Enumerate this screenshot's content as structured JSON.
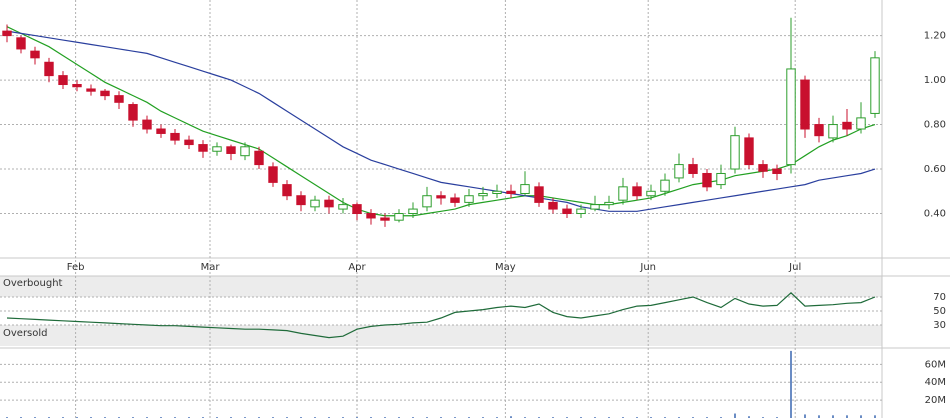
{
  "chart_data": [
    {
      "type": "candlestick",
      "x": [
        0,
        1,
        2,
        3,
        4,
        5,
        6,
        7,
        8,
        9,
        10,
        11,
        12,
        13,
        14,
        15,
        16,
        17,
        18,
        19,
        20,
        21,
        22,
        23,
        24,
        25,
        26,
        27,
        28,
        29,
        30,
        31,
        32,
        33,
        34,
        35,
        36,
        37,
        38,
        39,
        40,
        41,
        42,
        43,
        44,
        45,
        46,
        47,
        48,
        49,
        50,
        51,
        52,
        53,
        54,
        55,
        56,
        57,
        58,
        59,
        60,
        61,
        62
      ],
      "open": [
        1.22,
        1.19,
        1.13,
        1.08,
        1.02,
        0.98,
        0.96,
        0.95,
        0.93,
        0.89,
        0.82,
        0.78,
        0.76,
        0.73,
        0.71,
        0.68,
        0.7,
        0.66,
        0.68,
        0.61,
        0.53,
        0.48,
        0.43,
        0.46,
        0.42,
        0.44,
        0.4,
        0.38,
        0.37,
        0.4,
        0.43,
        0.48,
        0.47,
        0.45,
        0.48,
        0.49,
        0.5,
        0.49,
        0.52,
        0.45,
        0.42,
        0.4,
        0.42,
        0.44,
        0.46,
        0.52,
        0.48,
        0.5,
        0.56,
        0.62,
        0.58,
        0.53,
        0.6,
        0.74,
        0.62,
        0.6,
        0.62,
        1.0,
        0.8,
        0.74,
        0.81,
        0.78,
        0.85
      ],
      "high": [
        1.25,
        1.2,
        1.15,
        1.1,
        1.04,
        1.0,
        0.98,
        0.96,
        0.95,
        0.9,
        0.84,
        0.8,
        0.78,
        0.75,
        0.73,
        0.72,
        0.71,
        0.72,
        0.7,
        0.63,
        0.55,
        0.5,
        0.48,
        0.48,
        0.47,
        0.45,
        0.42,
        0.4,
        0.42,
        0.45,
        0.52,
        0.5,
        0.49,
        0.51,
        0.52,
        0.53,
        0.53,
        0.59,
        0.54,
        0.47,
        0.44,
        0.44,
        0.48,
        0.48,
        0.56,
        0.54,
        0.53,
        0.58,
        0.67,
        0.65,
        0.6,
        0.62,
        0.79,
        0.76,
        0.64,
        0.62,
        1.28,
        1.02,
        0.83,
        0.84,
        0.87,
        0.9,
        1.13
      ],
      "low": [
        1.17,
        1.12,
        1.07,
        0.99,
        0.96,
        0.95,
        0.93,
        0.91,
        0.87,
        0.79,
        0.76,
        0.74,
        0.71,
        0.69,
        0.65,
        0.66,
        0.64,
        0.64,
        0.6,
        0.52,
        0.46,
        0.41,
        0.41,
        0.4,
        0.4,
        0.37,
        0.35,
        0.34,
        0.36,
        0.38,
        0.41,
        0.44,
        0.43,
        0.43,
        0.46,
        0.47,
        0.47,
        0.48,
        0.43,
        0.4,
        0.38,
        0.38,
        0.41,
        0.42,
        0.44,
        0.46,
        0.46,
        0.48,
        0.54,
        0.56,
        0.5,
        0.51,
        0.58,
        0.6,
        0.56,
        0.55,
        0.58,
        0.74,
        0.72,
        0.72,
        0.75,
        0.76,
        0.83
      ],
      "close": [
        1.2,
        1.14,
        1.1,
        1.02,
        0.98,
        0.97,
        0.95,
        0.93,
        0.9,
        0.82,
        0.78,
        0.76,
        0.73,
        0.71,
        0.68,
        0.7,
        0.67,
        0.7,
        0.62,
        0.54,
        0.48,
        0.44,
        0.46,
        0.43,
        0.44,
        0.4,
        0.38,
        0.37,
        0.4,
        0.42,
        0.48,
        0.47,
        0.45,
        0.48,
        0.49,
        0.5,
        0.49,
        0.53,
        0.45,
        0.42,
        0.4,
        0.42,
        0.44,
        0.45,
        0.52,
        0.48,
        0.5,
        0.55,
        0.62,
        0.58,
        0.52,
        0.58,
        0.75,
        0.62,
        0.59,
        0.58,
        1.05,
        0.78,
        0.75,
        0.8,
        0.78,
        0.83,
        1.1
      ],
      "up_color": "#2e9e2e",
      "down_color": "#c8102e",
      "series": [
        {
          "color": "#22a022",
          "values": [
            1.24,
            1.21,
            1.18,
            1.15,
            1.11,
            1.07,
            1.03,
            0.99,
            0.96,
            0.93,
            0.9,
            0.86,
            0.83,
            0.8,
            0.77,
            0.75,
            0.73,
            0.71,
            0.69,
            0.65,
            0.61,
            0.57,
            0.53,
            0.49,
            0.45,
            0.42,
            0.4,
            0.39,
            0.39,
            0.39,
            0.4,
            0.41,
            0.42,
            0.44,
            0.45,
            0.46,
            0.47,
            0.48,
            0.48,
            0.47,
            0.46,
            0.45,
            0.44,
            0.44,
            0.45,
            0.46,
            0.47,
            0.49,
            0.51,
            0.53,
            0.54,
            0.55,
            0.57,
            0.58,
            0.59,
            0.6,
            0.62,
            0.66,
            0.7,
            0.73,
            0.75,
            0.78,
            0.8
          ]
        },
        {
          "color": "#2a3f9e",
          "values": [
            1.22,
            1.21,
            1.2,
            1.19,
            1.18,
            1.17,
            1.16,
            1.15,
            1.14,
            1.13,
            1.12,
            1.1,
            1.08,
            1.06,
            1.04,
            1.02,
            1.0,
            0.97,
            0.94,
            0.9,
            0.86,
            0.82,
            0.78,
            0.74,
            0.7,
            0.67,
            0.64,
            0.62,
            0.6,
            0.58,
            0.56,
            0.54,
            0.53,
            0.52,
            0.51,
            0.5,
            0.49,
            0.48,
            0.47,
            0.46,
            0.45,
            0.43,
            0.42,
            0.41,
            0.41,
            0.41,
            0.42,
            0.43,
            0.44,
            0.45,
            0.46,
            0.47,
            0.48,
            0.49,
            0.5,
            0.51,
            0.52,
            0.53,
            0.55,
            0.56,
            0.57,
            0.58,
            0.6
          ]
        }
      ],
      "xlim": [
        -0.5,
        62.5
      ],
      "xticks": [
        {
          "value": 4.9,
          "label": "Feb"
        },
        {
          "value": 14.5,
          "label": "Mar"
        },
        {
          "value": 25,
          "label": "Apr"
        },
        {
          "value": 35.6,
          "label": "May"
        },
        {
          "value": 45.8,
          "label": "Jun"
        },
        {
          "value": 56.3,
          "label": "Jul"
        }
      ],
      "ylim": [
        0.2,
        1.36
      ],
      "yticks": [
        {
          "value": 0.4,
          "label": "0.40"
        },
        {
          "value": 0.6,
          "label": "0.60"
        },
        {
          "value": 0.8,
          "label": "0.80"
        },
        {
          "value": 1.0,
          "label": "1.00"
        },
        {
          "value": 1.2,
          "label": "1.20"
        }
      ],
      "grid": true
    },
    {
      "type": "line",
      "values": [
        40,
        39,
        38,
        37,
        36,
        35,
        34,
        33,
        32,
        31,
        30,
        29,
        29,
        28,
        27,
        26,
        25,
        24,
        24,
        23,
        22,
        18,
        15,
        12,
        14,
        24,
        28,
        30,
        31,
        33,
        34,
        40,
        48,
        50,
        52,
        55,
        57,
        55,
        60,
        48,
        42,
        40,
        43,
        46,
        52,
        57,
        58,
        62,
        66,
        70,
        62,
        55,
        68,
        60,
        57,
        58,
        76,
        57,
        58,
        59,
        61,
        62,
        70
      ],
      "color": "#1f6b3a",
      "annotations": [
        "Overbought",
        "Oversold"
      ],
      "ylim": [
        0,
        100
      ],
      "yticks": [
        30,
        50,
        70
      ],
      "grid": true
    },
    {
      "type": "bar",
      "values": [
        1000000,
        1000000,
        1000000,
        1000000,
        1000000,
        1000000,
        1000000,
        1000000,
        1000000,
        1000000,
        1000000,
        1000000,
        1000000,
        1000000,
        1000000,
        1000000,
        1000000,
        1000000,
        1000000,
        1000000,
        1000000,
        1000000,
        1000000,
        1000000,
        1000000,
        1000000,
        1000000,
        1000000,
        1000000,
        1000000,
        1000000,
        1000000,
        1000000,
        1000000,
        1000000,
        1000000,
        2000000,
        1000000,
        1000000,
        1000000,
        1000000,
        1000000,
        1000000,
        1000000,
        1000000,
        1000000,
        1000000,
        1000000,
        1000000,
        1000000,
        1000000,
        1000000,
        5000000,
        2000000,
        1000000,
        1000000,
        75000000,
        4000000,
        3000000,
        3000000,
        3000000,
        3000000,
        3000000
      ],
      "color": "#6a8cc4",
      "ylim": [
        0,
        76000000
      ],
      "yticks": [
        {
          "value": 20000000,
          "label": "20M"
        },
        {
          "value": 40000000,
          "label": "40M"
        },
        {
          "value": 60000000,
          "label": "60M"
        }
      ],
      "grid": true
    }
  ]
}
